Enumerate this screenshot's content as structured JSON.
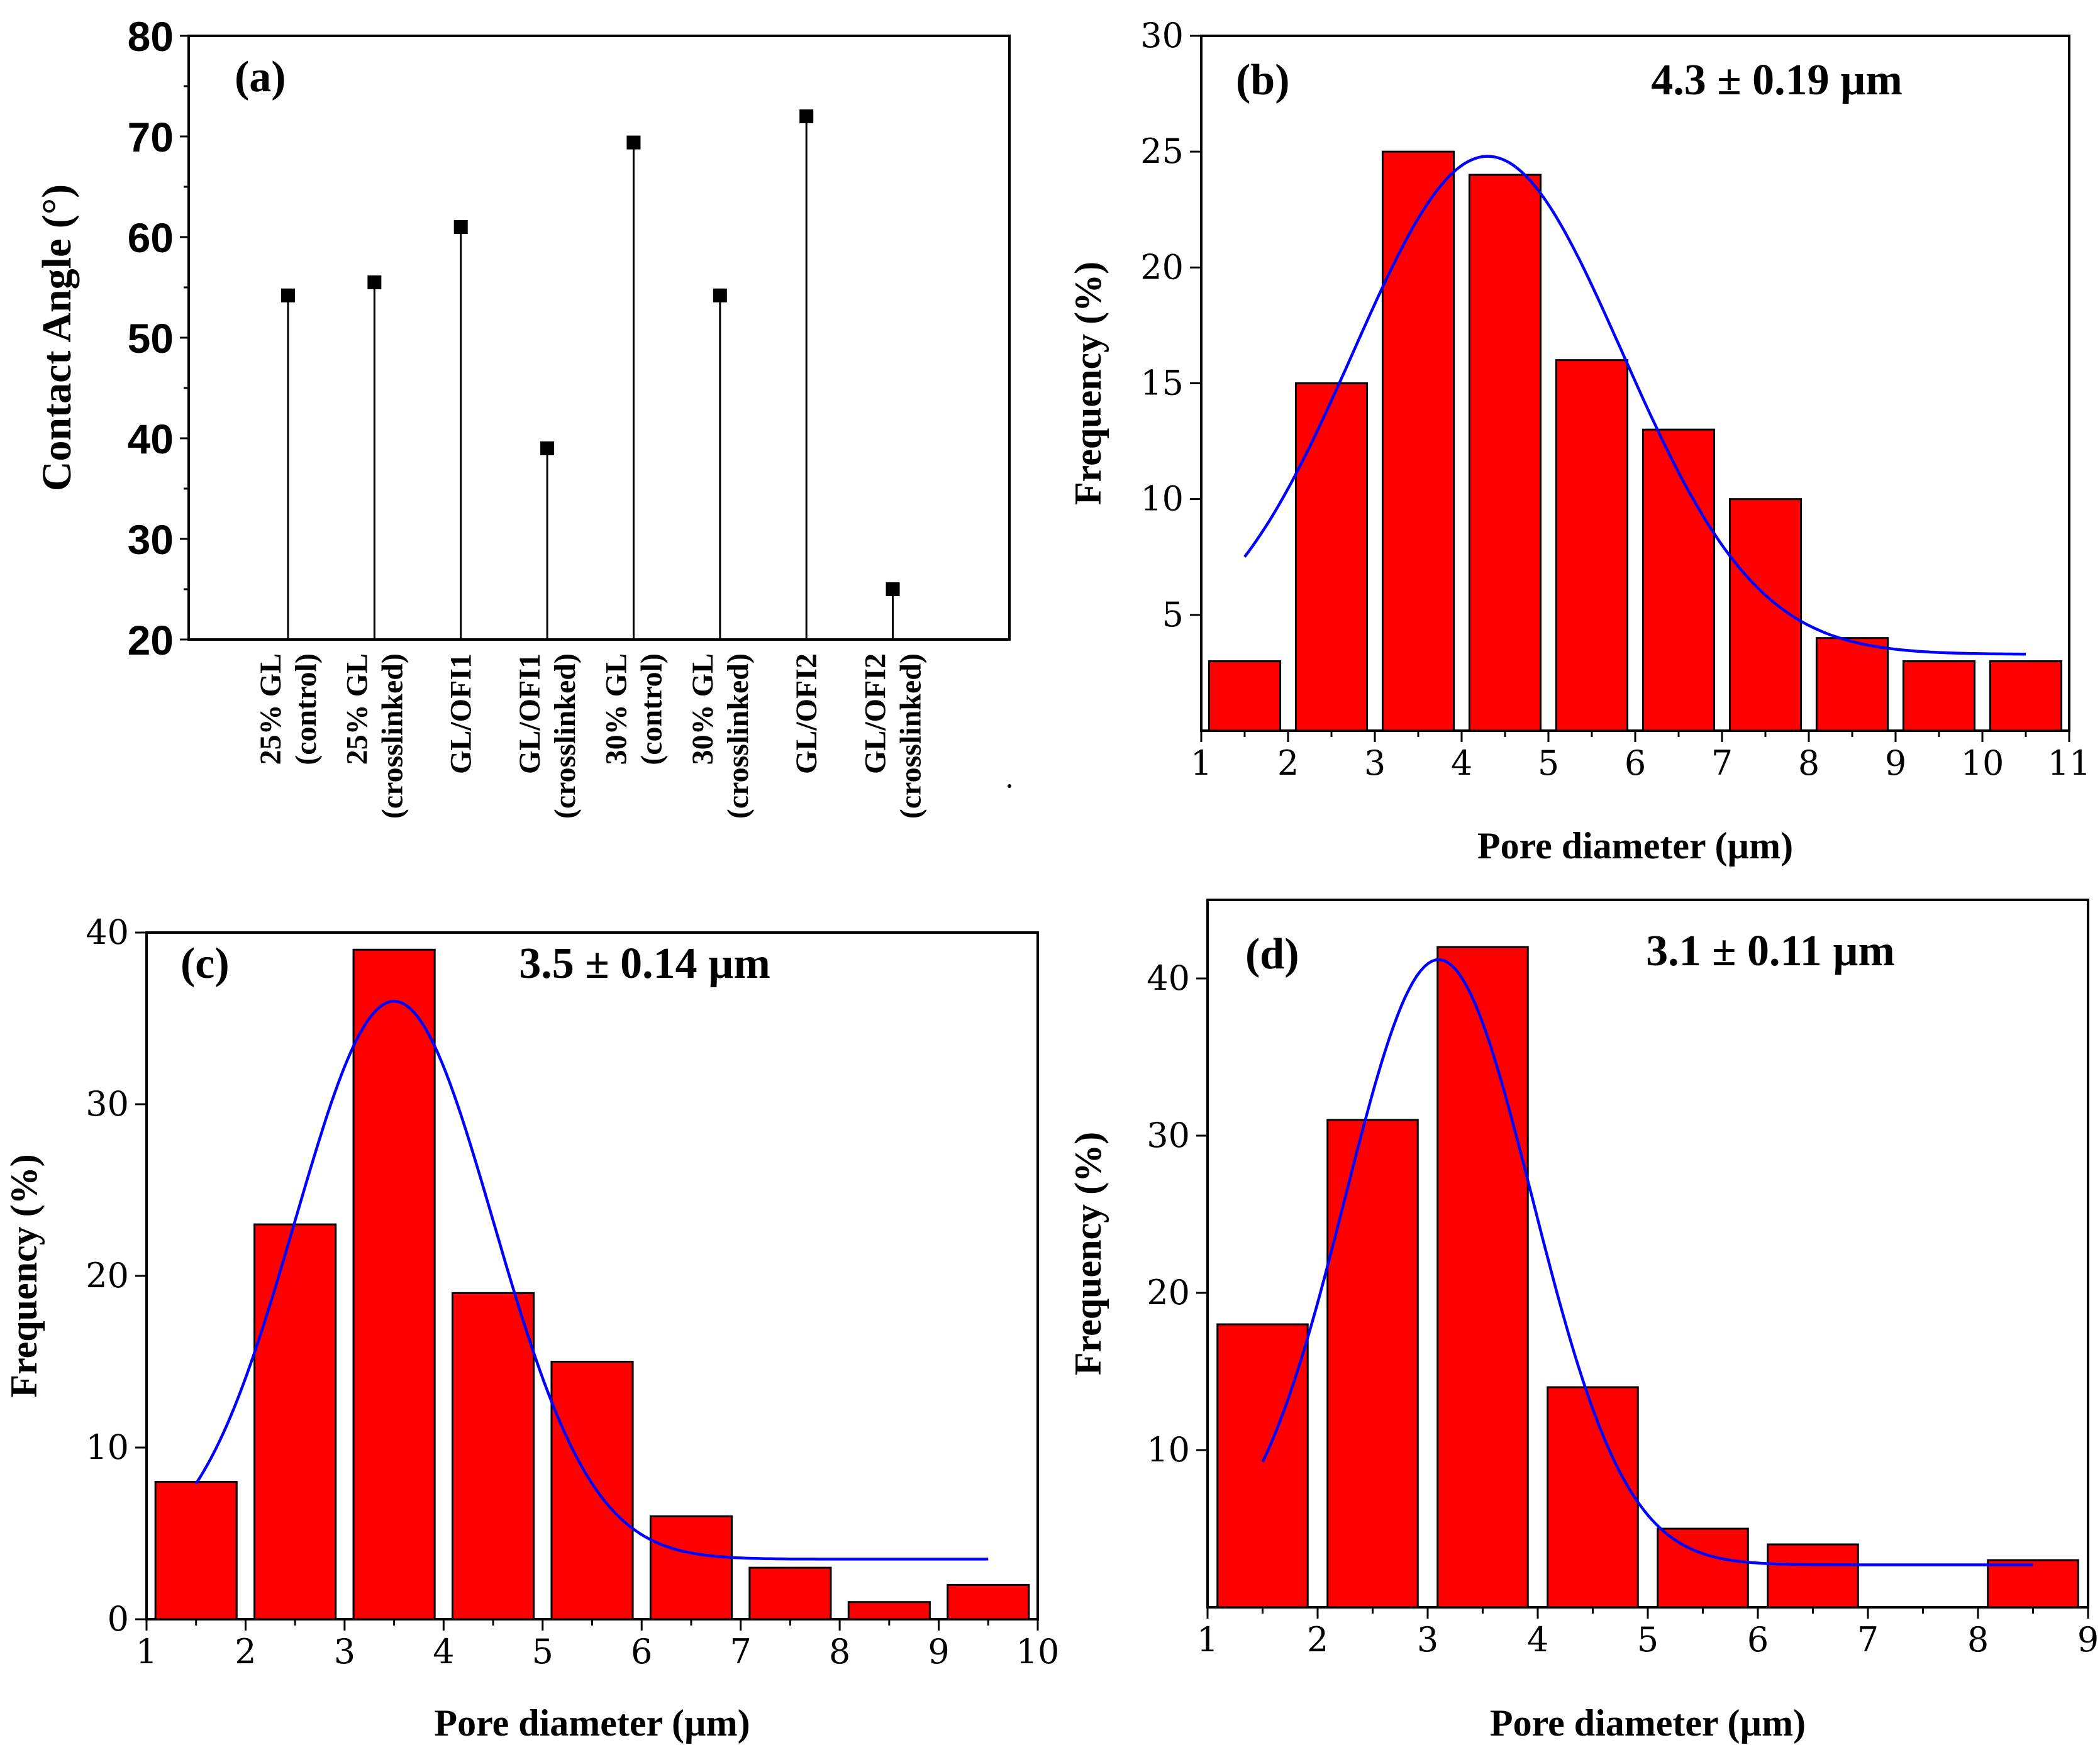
{
  "chart_data": [
    {
      "id": "a",
      "type": "scatter",
      "panel_label": "(a)",
      "ylabel": "Contact Angle (°)",
      "xlabel": "",
      "ylim": [
        20,
        80
      ],
      "yticks": [
        20,
        30,
        40,
        50,
        60,
        70,
        80
      ],
      "categories": [
        [
          "25% GL",
          "(control)"
        ],
        [
          "25% GL",
          "(crosslinked)"
        ],
        [
          "GL/OFI1"
        ],
        [
          "GL/OFI1",
          "(crosslinked)"
        ],
        [
          "30% GL",
          "(control)"
        ],
        [
          "30% GL",
          "(crosslinked)"
        ],
        [
          "GL/OFI2"
        ],
        [
          "GL/OFI2",
          "(crosslinked)"
        ]
      ],
      "values": [
        54.2,
        55.5,
        61,
        39,
        69.4,
        54.2,
        72,
        25
      ]
    },
    {
      "id": "b",
      "type": "bar",
      "panel_label": "(b)",
      "annotation": "4.3 ± 0.19 µm",
      "xlabel": "Pore diameter (µm)",
      "ylabel": "Frequency (%)",
      "xlim": [
        1,
        11
      ],
      "ylim": [
        0,
        30
      ],
      "xticks": [
        1,
        2,
        3,
        4,
        5,
        6,
        7,
        8,
        9,
        10,
        11
      ],
      "yticks": [
        5,
        10,
        15,
        20,
        25,
        30
      ],
      "bar_centers": [
        1.5,
        2.5,
        3.5,
        4.5,
        5.5,
        6.5,
        7.5,
        8.5,
        9.5,
        10.5
      ],
      "values": [
        3,
        15,
        25,
        24,
        16,
        13,
        10,
        4,
        3,
        3
      ],
      "fit": {
        "type": "gaussian",
        "center": 4.3,
        "amplitude": 21.5,
        "width": 1.55,
        "offset": 3.3,
        "x_range": [
          1.5,
          10.5
        ]
      }
    },
    {
      "id": "c",
      "type": "bar",
      "panel_label": "(c)",
      "annotation": "3.5 ± 0.14 µm",
      "xlabel": "Pore diameter (µm)",
      "ylabel": "Frequency (%)",
      "xlim": [
        1,
        10
      ],
      "ylim": [
        0,
        40
      ],
      "xticks": [
        1,
        2,
        3,
        4,
        5,
        6,
        7,
        8,
        9,
        10
      ],
      "yticks": [
        0,
        10,
        20,
        30,
        40
      ],
      "bar_centers": [
        1.5,
        2.5,
        3.5,
        4.5,
        5.5,
        6.5,
        7.5,
        8.5,
        9.5
      ],
      "values": [
        8,
        23,
        39,
        19,
        15,
        6,
        3,
        1,
        2
      ],
      "fit": {
        "type": "gaussian",
        "center": 3.5,
        "amplitude": 32.5,
        "width": 1.0,
        "offset": 3.5,
        "x_range": [
          1.5,
          9.5
        ]
      }
    },
    {
      "id": "d",
      "type": "bar",
      "panel_label": "(d)",
      "annotation": "3.1 ± 0.11 µm",
      "xlabel": "Pore diameter (µm)",
      "ylabel": "Frequency (%)",
      "xlim": [
        1,
        9
      ],
      "ylim": [
        0,
        45
      ],
      "xticks": [
        1,
        2,
        3,
        4,
        5,
        6,
        7,
        8,
        9
      ],
      "yticks": [
        10,
        20,
        30,
        40
      ],
      "bar_centers": [
        1.5,
        2.5,
        3.5,
        4.5,
        5.5,
        6.5,
        7.5,
        8.5
      ],
      "values": [
        18,
        31,
        42,
        14,
        5,
        4,
        0,
        3
      ],
      "fit": {
        "type": "gaussian",
        "center": 3.1,
        "amplitude": 38.5,
        "width": 0.85,
        "offset": 2.7,
        "x_range": [
          1.5,
          8.5
        ]
      }
    }
  ]
}
